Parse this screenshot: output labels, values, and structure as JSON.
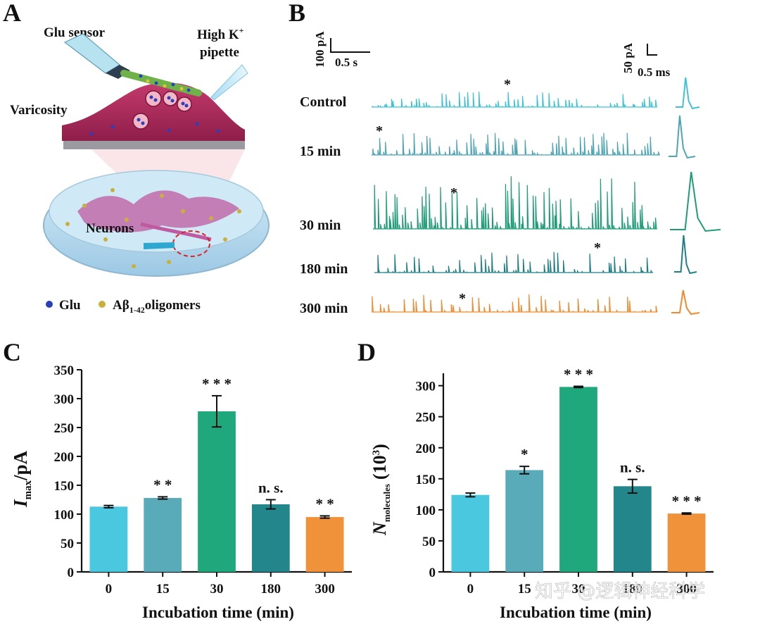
{
  "panels": {
    "a": "A",
    "b": "B",
    "c": "C",
    "d": "D"
  },
  "panelA": {
    "glu_sensor": "Glu sensor",
    "pipette_line1": "High K",
    "pipette_sup": "+",
    "pipette_line2": "pipette",
    "varicosity": "Varicosity",
    "neurons": "Neurons",
    "legend_glu": "Glu",
    "legend_abeta": "Aβ",
    "legend_abeta_sub": "1-42",
    "legend_abeta_rest": "oligomers"
  },
  "panelB": {
    "scale_left_y": "100 pA",
    "scale_left_x": "0.5 s",
    "scale_right_y": "50 pA",
    "scale_right_x": "0.5 ms",
    "star": "*",
    "traces": [
      {
        "label": "Control",
        "color": "#3fc3d4"
      },
      {
        "label": "15 min",
        "color": "#4ea5b4"
      },
      {
        "label": "30 min",
        "color": "#1e9c78"
      },
      {
        "label": "180 min",
        "color": "#1f7f86"
      },
      {
        "label": "300 min",
        "color": "#ef8a2e"
      }
    ]
  },
  "chart_data": [
    {
      "type": "bar",
      "panel": "C",
      "categories": [
        "0",
        "15",
        "30",
        "180",
        "300"
      ],
      "values": [
        113,
        128,
        278,
        117,
        95
      ],
      "errors": [
        2,
        2,
        27,
        8,
        2
      ],
      "significance": [
        "",
        "* *",
        "* * *",
        "n. s.",
        "* *"
      ],
      "colors": [
        "#4ac8e0",
        "#5aabba",
        "#1ea87c",
        "#22868a",
        "#f0923a"
      ],
      "ylim": [
        0,
        350
      ],
      "yticks": [
        0,
        50,
        100,
        150,
        200,
        250,
        300,
        350
      ],
      "xlabel": "Incubation time (min)",
      "ylabel_main": "I",
      "ylabel_sub": "max",
      "ylabel_unit": "/pA"
    },
    {
      "type": "bar",
      "panel": "D",
      "categories": [
        "0",
        "15",
        "30",
        "180",
        "300"
      ],
      "values": [
        124,
        164,
        298,
        138,
        94
      ],
      "errors": [
        3,
        6,
        1,
        11,
        1
      ],
      "significance": [
        "",
        "*",
        "* * *",
        "n. s.",
        "* * *"
      ],
      "colors": [
        "#4ac8e0",
        "#5aabba",
        "#1ea87c",
        "#22868a",
        "#f0923a"
      ],
      "ylim": [
        0,
        320
      ],
      "yticks": [
        0,
        50,
        100,
        150,
        200,
        250,
        300
      ],
      "xlabel": "Incubation time (min)",
      "ylabel_main": "N",
      "ylabel_sub": "molecules",
      "ylabel_unit": "(10",
      "ylabel_exp": "3",
      "ylabel_close": ")"
    }
  ],
  "watermark": "知乎 @逻辑神经科学"
}
